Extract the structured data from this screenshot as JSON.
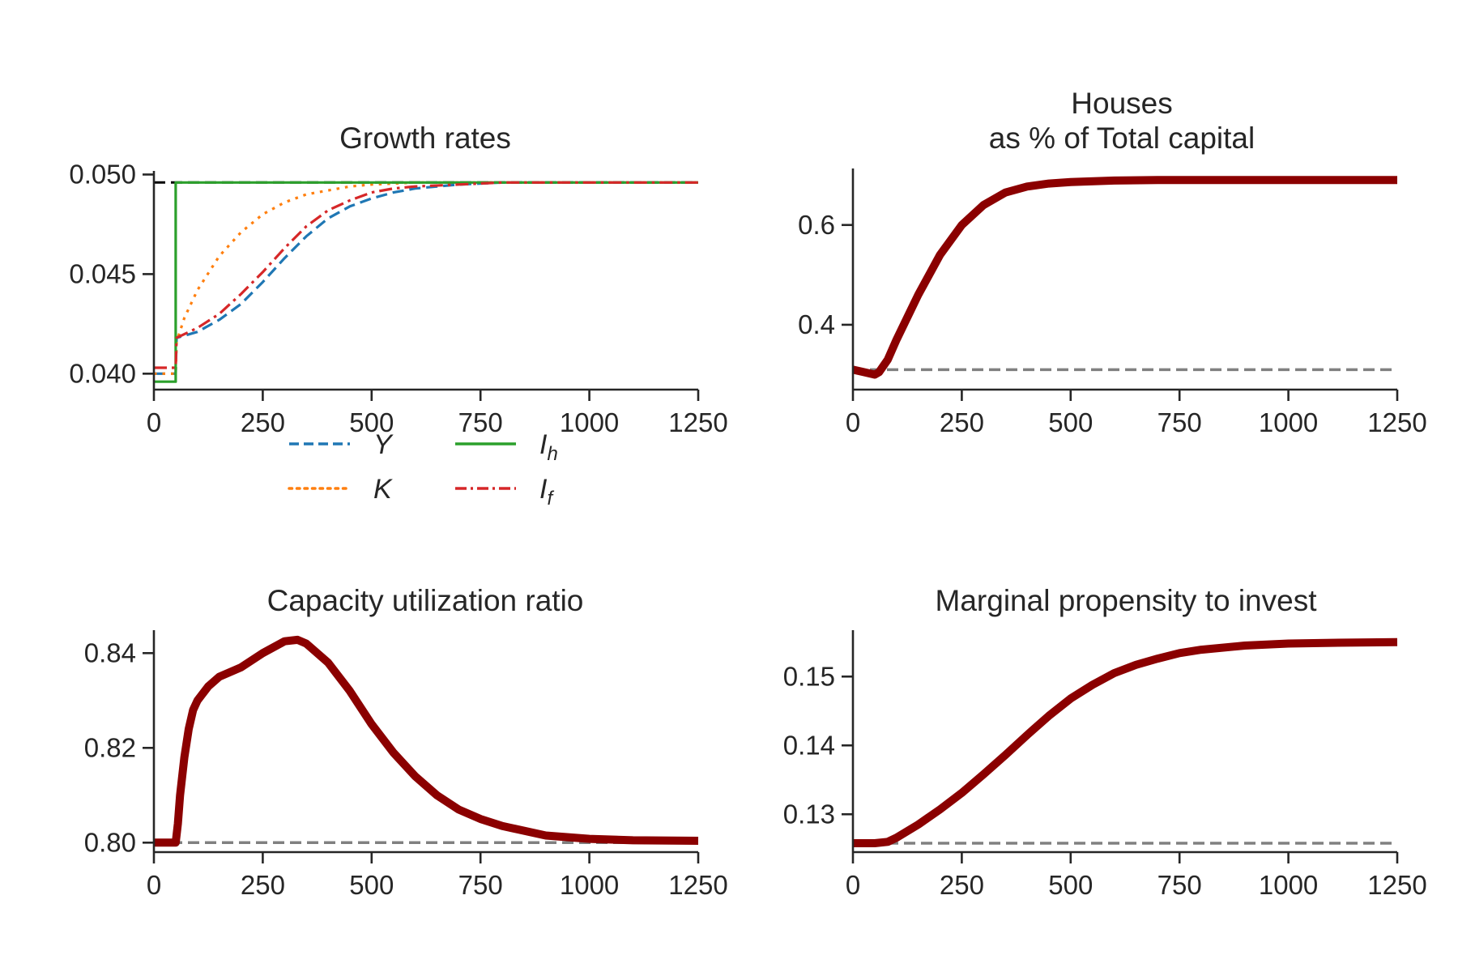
{
  "colors": {
    "Y": "#1f77b4",
    "K": "#ff7f0e",
    "I_h": "#2ca02c",
    "I_f": "#d62728",
    "main_line": "#8b0000",
    "baseline": "#808080",
    "steady_state": "#000000",
    "text": "#262626"
  },
  "chart_data": [
    {
      "id": "growth",
      "type": "line",
      "title": "Growth rates",
      "xlim": [
        0,
        1250
      ],
      "ylim": [
        0.0392,
        0.0501
      ],
      "xticks": [
        0,
        250,
        500,
        750,
        1000,
        1250
      ],
      "yticks": [
        0.04,
        0.045,
        0.05
      ],
      "ytick_labels": [
        "0.040",
        "0.045",
        "0.050"
      ],
      "legend_position": "below plot",
      "reference_line": {
        "y": 0.0496,
        "style": "dashed",
        "color": "#000000"
      },
      "series": [
        {
          "name": "Y",
          "legend": "Y",
          "style": "dashed",
          "color": "#1f77b4",
          "x": [
            0,
            50,
            52,
            100,
            150,
            200,
            250,
            300,
            350,
            400,
            450,
            500,
            550,
            600,
            700,
            800,
            900,
            1000,
            1250
          ],
          "y": [
            0.04,
            0.04,
            0.0418,
            0.0421,
            0.0427,
            0.0435,
            0.0446,
            0.0458,
            0.0469,
            0.0478,
            0.0484,
            0.0488,
            0.0491,
            0.0493,
            0.0495,
            0.0496,
            0.0496,
            0.0496,
            0.0496
          ]
        },
        {
          "name": "K",
          "legend": "K",
          "style": "dotted",
          "color": "#ff7f0e",
          "x": [
            0,
            50,
            52,
            70,
            100,
            150,
            200,
            250,
            300,
            350,
            400,
            450,
            500,
            600,
            700,
            800,
            1000,
            1250
          ],
          "y": [
            0.04,
            0.04,
            0.0416,
            0.0428,
            0.0442,
            0.0459,
            0.0471,
            0.048,
            0.0486,
            0.049,
            0.0492,
            0.0494,
            0.0495,
            0.0496,
            0.0496,
            0.0496,
            0.0496,
            0.0496
          ]
        },
        {
          "name": "I_h",
          "legend": "I",
          "legend_sub": "h",
          "style": "solid",
          "color": "#2ca02c",
          "x": [
            0,
            50,
            50,
            1250
          ],
          "y": [
            0.0396,
            0.0396,
            0.0496,
            0.0496
          ]
        },
        {
          "name": "I_f",
          "legend": "I",
          "legend_sub": "f",
          "style": "dashdot",
          "color": "#d62728",
          "x": [
            0,
            50,
            52,
            100,
            150,
            200,
            250,
            300,
            350,
            400,
            450,
            500,
            550,
            600,
            700,
            800,
            1000,
            1250
          ],
          "y": [
            0.0403,
            0.0403,
            0.0418,
            0.0423,
            0.043,
            0.044,
            0.0451,
            0.0463,
            0.0474,
            0.0482,
            0.0487,
            0.0491,
            0.0493,
            0.0494,
            0.0495,
            0.0496,
            0.0496,
            0.0496
          ]
        }
      ]
    },
    {
      "id": "houses",
      "type": "line",
      "title": "Houses\nas % of Total capital",
      "xlim": [
        0,
        1250
      ],
      "ylim": [
        0.27,
        0.71
      ],
      "xticks": [
        0,
        250,
        500,
        750,
        1000,
        1250
      ],
      "yticks": [
        0.4,
        0.6
      ],
      "ytick_labels": [
        "0.4",
        "0.6"
      ],
      "reference_line": {
        "y": 0.31,
        "style": "dashed",
        "color": "#808080"
      },
      "series": [
        {
          "style": "solid",
          "color": "#8b0000",
          "x": [
            0,
            25,
            50,
            60,
            80,
            100,
            150,
            200,
            250,
            300,
            350,
            400,
            450,
            500,
            600,
            700,
            800,
            1000,
            1250
          ],
          "y": [
            0.31,
            0.305,
            0.3,
            0.305,
            0.33,
            0.37,
            0.46,
            0.54,
            0.6,
            0.64,
            0.665,
            0.677,
            0.683,
            0.686,
            0.689,
            0.69,
            0.69,
            0.69,
            0.69
          ]
        }
      ]
    },
    {
      "id": "capacity",
      "type": "line",
      "title": "Capacity utilization ratio",
      "xlim": [
        0,
        1250
      ],
      "ylim": [
        0.798,
        0.8445
      ],
      "xticks": [
        0,
        250,
        500,
        750,
        1000,
        1250
      ],
      "yticks": [
        0.8,
        0.82,
        0.84
      ],
      "ytick_labels": [
        "0.80",
        "0.82",
        "0.84"
      ],
      "reference_line": {
        "y": 0.8,
        "style": "dashed",
        "color": "#808080"
      },
      "series": [
        {
          "style": "solid",
          "color": "#8b0000",
          "x": [
            0,
            50,
            55,
            60,
            70,
            80,
            90,
            100,
            125,
            150,
            200,
            250,
            300,
            330,
            350,
            400,
            450,
            500,
            550,
            600,
            650,
            700,
            750,
            800,
            900,
            1000,
            1100,
            1250
          ],
          "y": [
            0.8,
            0.8,
            0.804,
            0.81,
            0.818,
            0.824,
            0.828,
            0.83,
            0.833,
            0.835,
            0.837,
            0.84,
            0.8425,
            0.8428,
            0.842,
            0.838,
            0.832,
            0.825,
            0.819,
            0.814,
            0.81,
            0.807,
            0.805,
            0.8035,
            0.8015,
            0.8008,
            0.8005,
            0.8004
          ]
        }
      ]
    },
    {
      "id": "mpi",
      "type": "line",
      "title": "Marginal propensity to invest",
      "xlim": [
        0,
        1250
      ],
      "ylim": [
        0.1245,
        0.1565
      ],
      "xticks": [
        0,
        250,
        500,
        750,
        1000,
        1250
      ],
      "yticks": [
        0.13,
        0.14,
        0.15
      ],
      "ytick_labels": [
        "0.13",
        "0.14",
        "0.15"
      ],
      "reference_line": {
        "y": 0.1258,
        "style": "dashed",
        "color": "#808080"
      },
      "series": [
        {
          "style": "solid",
          "color": "#8b0000",
          "x": [
            0,
            50,
            80,
            100,
            150,
            200,
            250,
            300,
            350,
            400,
            450,
            500,
            550,
            600,
            650,
            700,
            750,
            800,
            900,
            1000,
            1100,
            1250
          ],
          "y": [
            0.1258,
            0.1258,
            0.126,
            0.1266,
            0.1285,
            0.1307,
            0.1331,
            0.1358,
            0.1386,
            0.1415,
            0.1443,
            0.1468,
            0.1488,
            0.1505,
            0.1517,
            0.1526,
            0.1534,
            0.1539,
            0.1545,
            0.1548,
            0.1549,
            0.155
          ]
        }
      ]
    }
  ]
}
